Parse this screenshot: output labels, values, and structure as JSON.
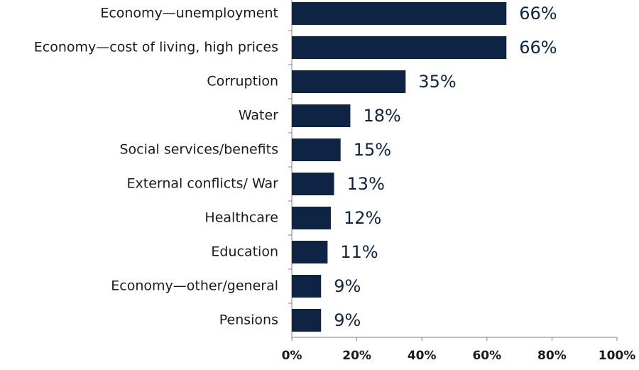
{
  "chart_data": {
    "type": "bar",
    "orientation": "horizontal",
    "categories": [
      "Economy—unemployment",
      "Economy—cost of living, high prices",
      "Corruption",
      "Water",
      "Social services/benefits",
      "External conflicts/ War",
      "Healthcare",
      "Education",
      "Economy—other/general",
      "Pensions"
    ],
    "values": [
      66,
      66,
      35,
      18,
      15,
      13,
      12,
      11,
      9,
      9
    ],
    "value_labels": [
      "66%",
      "66%",
      "35%",
      "18%",
      "15%",
      "13%",
      "12%",
      "11%",
      "9%",
      "9%"
    ],
    "color": "#0f2444",
    "xlim": [
      0,
      100
    ],
    "xticks": [
      {
        "value": 0,
        "label": "0%"
      },
      {
        "value": 20,
        "label": "20%"
      },
      {
        "value": 40,
        "label": "40%"
      },
      {
        "value": 60,
        "label": "60%"
      },
      {
        "value": 80,
        "label": "80%"
      },
      {
        "value": 100,
        "label": "100%"
      }
    ]
  }
}
